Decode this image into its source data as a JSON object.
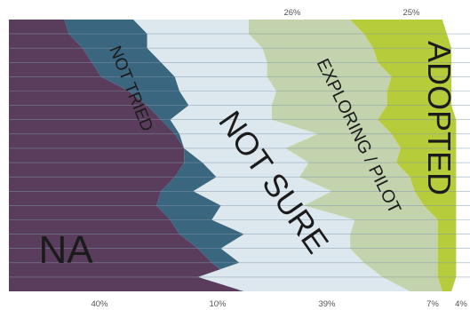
{
  "chart_data": {
    "type": "area",
    "title": "",
    "legend": "none",
    "grid": true,
    "categories": [
      "NA",
      "NOT TRIED",
      "NOT SURE",
      "EXPLORING / PILOT",
      "ADOPTED"
    ],
    "band_labels": [
      "NA",
      "NOT TRIED",
      "NOT SURE",
      "EXPLORING / PILOT",
      "ADOPTED"
    ],
    "top_percent_labels": [
      "26%",
      "25%"
    ],
    "bottom_percent_labels": [
      "40%",
      "10%",
      "39%",
      "7%",
      "4%"
    ],
    "rows": 19,
    "boundaries": [
      [
        12,
        13,
        16,
        18,
        20,
        26,
        30,
        33,
        36,
        38,
        38,
        36,
        33,
        32,
        35,
        37,
        41,
        44,
        48,
        50
      ],
      [
        27,
        30,
        30,
        33,
        36,
        37,
        39,
        35,
        37,
        38,
        42,
        45,
        40,
        46,
        44,
        51,
        46,
        50,
        41,
        51
      ],
      [
        52,
        52,
        55,
        56,
        56,
        58,
        57,
        57,
        67,
        60,
        65,
        63,
        70,
        64,
        75,
        74,
        74,
        77,
        81,
        87
      ],
      [
        74,
        77,
        79,
        80,
        83,
        82,
        82,
        80,
        83,
        85,
        84,
        87,
        88,
        90,
        93,
        93,
        93,
        93,
        93,
        94
      ],
      [
        94,
        95,
        96,
        96,
        96,
        96,
        96,
        97,
        97,
        97,
        97,
        97,
        97,
        97,
        97,
        97,
        97,
        97,
        97,
        96
      ]
    ],
    "colors": [
      "#5a3d5c",
      "#3b6680",
      "#dde8ee",
      "#c3d3ad",
      "#b6cc3a",
      "#ffffff"
    ],
    "line_color": "#7e97aa"
  }
}
